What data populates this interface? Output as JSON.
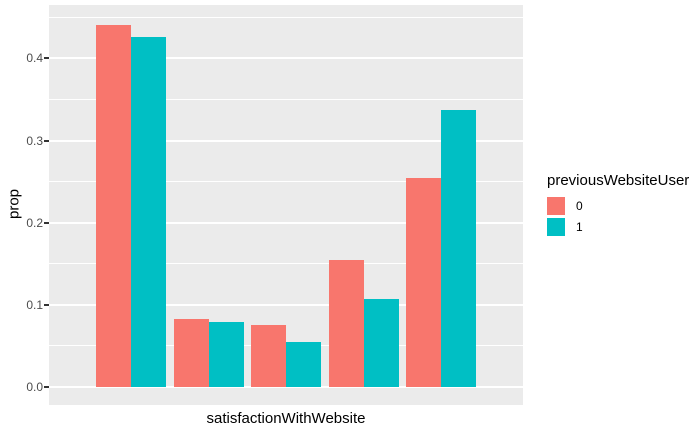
{
  "chart_data": {
    "type": "bar",
    "grouped": true,
    "title": "",
    "xlabel": "satisfactionWithWebsite",
    "ylabel": "prop",
    "legend_title": "previousWebsiteUser",
    "legend_position": "right",
    "categories": [
      "",
      "",
      "",
      "",
      ""
    ],
    "x_tick_labels_visible": false,
    "series": [
      {
        "name": "0",
        "color": "#F8766D",
        "values": [
          0.441,
          0.083,
          0.075,
          0.154,
          0.254
        ]
      },
      {
        "name": "1",
        "color": "#00BFC4",
        "values": [
          0.426,
          0.079,
          0.055,
          0.107,
          0.337
        ]
      }
    ],
    "ylim": [
      -0.022,
      0.465
    ],
    "yticks": [
      0.0,
      0.1,
      0.2,
      0.3,
      0.4
    ],
    "ytick_labels": [
      "0.0",
      "0.1",
      "0.2",
      "0.3",
      "0.4"
    ],
    "minor_yticks": [
      0.05,
      0.15,
      0.25,
      0.35,
      0.45
    ],
    "grid": true,
    "panel_bg": "#EBEBEB",
    "grid_color": "#FFFFFF",
    "tick_label_color": "#4D4D4D",
    "axis_title_color": "#000000"
  }
}
